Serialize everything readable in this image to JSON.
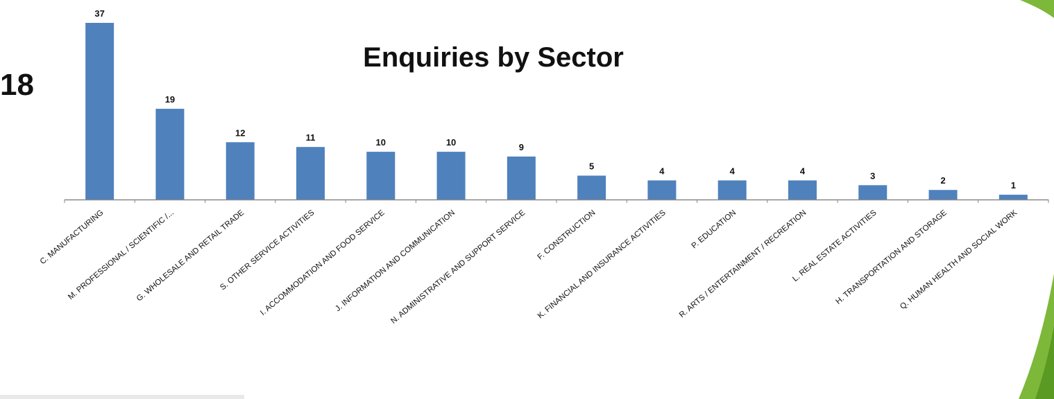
{
  "page": {
    "fragment_text": "18"
  },
  "colors": {
    "bar": "#4f81bd",
    "axis": "#888888",
    "accent_green": "#7db83a",
    "accent_green_dark": "#5a9a22"
  },
  "chart_data": {
    "type": "bar",
    "title": "Enquiries by Sector",
    "xlabel": "",
    "ylabel": "",
    "ylim": [
      0,
      37
    ],
    "grid": false,
    "legend": "none",
    "categories": [
      "C. MANUFACTURING",
      "M. PROFESSIONAL / SCIENTIFIC /...",
      "G. WHOLESALE AND RETAIL TRADE",
      "S. OTHER SERVICE ACTIVITIES",
      "I. ACCOMMODATION AND FOOD SERVICE",
      "J. INFORMATION AND COMMUNICATION",
      "N. ADMINISTRATIVE AND SUPPORT SERVICE",
      "F. CONSTRUCTION",
      "K. FINANCIAL AND INSURANCE ACTIVITIES",
      "P. EDUCATION",
      "R. ARTS / ENTERTAINMENT / RECREATION",
      "L. REAL ESTATE ACTIVITIES",
      "H. TRANSPORTATION AND STORAGE",
      "Q. HUMAN HEALTH AND SOCIAL WORK"
    ],
    "values": [
      37,
      19,
      12,
      11,
      10,
      10,
      9,
      5,
      4,
      4,
      4,
      3,
      2,
      1
    ]
  }
}
